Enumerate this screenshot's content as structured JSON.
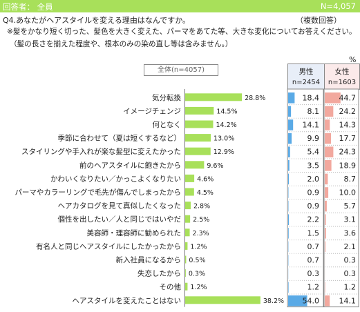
{
  "header": {
    "respondents": "回答者： 全員",
    "n_total": "N=4,057"
  },
  "question": {
    "title": "Q4.あなたがヘアスタイルを変える理由はなんですか。",
    "multi": "（複数回答）",
    "note1": "※髪をかなり短く切った、髪色を大きく変えた、パーマをあてた等、大きな変化についてお答えください。",
    "note2": "（髪の長さを揃えた程度や、根本のみの染め直し等は含みません。）"
  },
  "table": {
    "overall_label": "全体(n=4057)",
    "male_label": "男性",
    "male_n": "n=2454",
    "female_label": "女性",
    "female_n": "n=1603",
    "percent_sign": "%"
  },
  "chart_data": {
    "type": "bar",
    "categories": [
      "気分転換",
      "イメージチェンジ",
      "何となく",
      "季節に合わせて（夏は短くするなど）",
      "スタイリングや手入れが楽な髪型に変えたかった",
      "前のヘアスタイルに飽きたから",
      "かわいくなりたい／かっこよくなりたい",
      "パーマやカラーリングで毛先が傷んでしまったから",
      "ヘアカタログを見て真似したくなった",
      "個性を出したい／人と同じではいやだ",
      "美容師・理容師に勧められた",
      "有名人と同じヘアスタイルにしたかったから",
      "新入社員になるから",
      "失恋したから",
      "その他",
      "ヘアスタイルを変えたことはない"
    ],
    "overall_labels": [
      "28.8%",
      "14.5%",
      "14.2%",
      "13.0%",
      "12.9%",
      "9.6%",
      "4.6%",
      "4.5%",
      "2.8%",
      "2.5%",
      "2.3%",
      "1.2%",
      "0.5%",
      "0.3%",
      "1.2%",
      "38.2%"
    ],
    "series": [
      {
        "name": "全体",
        "values": [
          28.8,
          14.5,
          14.2,
          13.0,
          12.9,
          9.6,
          4.6,
          4.5,
          2.8,
          2.5,
          2.3,
          1.2,
          0.5,
          0.3,
          1.2,
          38.2
        ]
      },
      {
        "name": "男性",
        "values": [
          18.4,
          8.1,
          14.1,
          9.9,
          5.4,
          3.5,
          2.0,
          0.9,
          0.9,
          2.2,
          1.5,
          0.7,
          0.7,
          0.3,
          1.2,
          54.0
        ]
      },
      {
        "name": "女性",
        "values": [
          44.7,
          24.2,
          14.3,
          17.7,
          24.3,
          18.9,
          8.7,
          10.0,
          5.7,
          3.1,
          3.6,
          2.1,
          0.3,
          0.3,
          1.2,
          14.1
        ]
      }
    ],
    "male_labels": [
      "18.4",
      "8.1",
      "14.1",
      "9.9",
      "5.4",
      "3.5",
      "2.0",
      "0.9",
      "0.9",
      "2.2",
      "1.5",
      "0.7",
      "0.7",
      "0.3",
      "1.2",
      "54.0"
    ],
    "female_labels": [
      "44.7",
      "24.2",
      "14.3",
      "17.7",
      "24.3",
      "18.9",
      "8.7",
      "10.0",
      "5.7",
      "3.1",
      "3.6",
      "2.1",
      "0.3",
      "0.3",
      "1.2",
      "14.1"
    ],
    "colors": {
      "overall": "#a8e05a",
      "male": "#5aaae6",
      "female": "#f2a89e",
      "header": "#a8e05a"
    }
  }
}
